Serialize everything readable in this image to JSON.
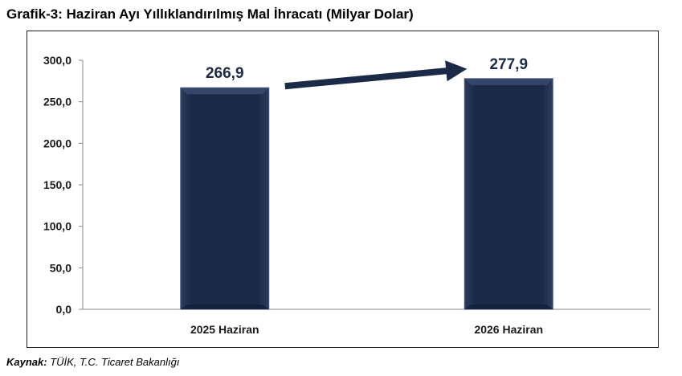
{
  "title": "Grafik-3: Haziran Ayı Yıllıklandırılmış Mal İhracatı (Milyar Dolar)",
  "source": {
    "label": "Kaynak:",
    "text": " TÜİK, T.C. Ticaret Bakanlığı"
  },
  "chart_data": {
    "type": "bar",
    "categories": [
      "2025 Haziran",
      "2026 Haziran"
    ],
    "values": [
      266.9,
      277.9
    ],
    "value_labels": [
      "266,9",
      "277,9"
    ],
    "ylim": [
      0,
      300
    ],
    "yticks": [
      0,
      50,
      100,
      150,
      200,
      250,
      300
    ],
    "ytick_labels": [
      "0,0",
      "50,0",
      "100,0",
      "150,0",
      "200,0",
      "250,0",
      "300,0"
    ],
    "grid": false,
    "legend": "none",
    "annotation": "arrow from first bar to second bar",
    "colors": {
      "bar": "#1b2a47",
      "bar_edge": "#4a5a78",
      "label": "#1b2a47",
      "arrow": "#1b2a47"
    }
  }
}
